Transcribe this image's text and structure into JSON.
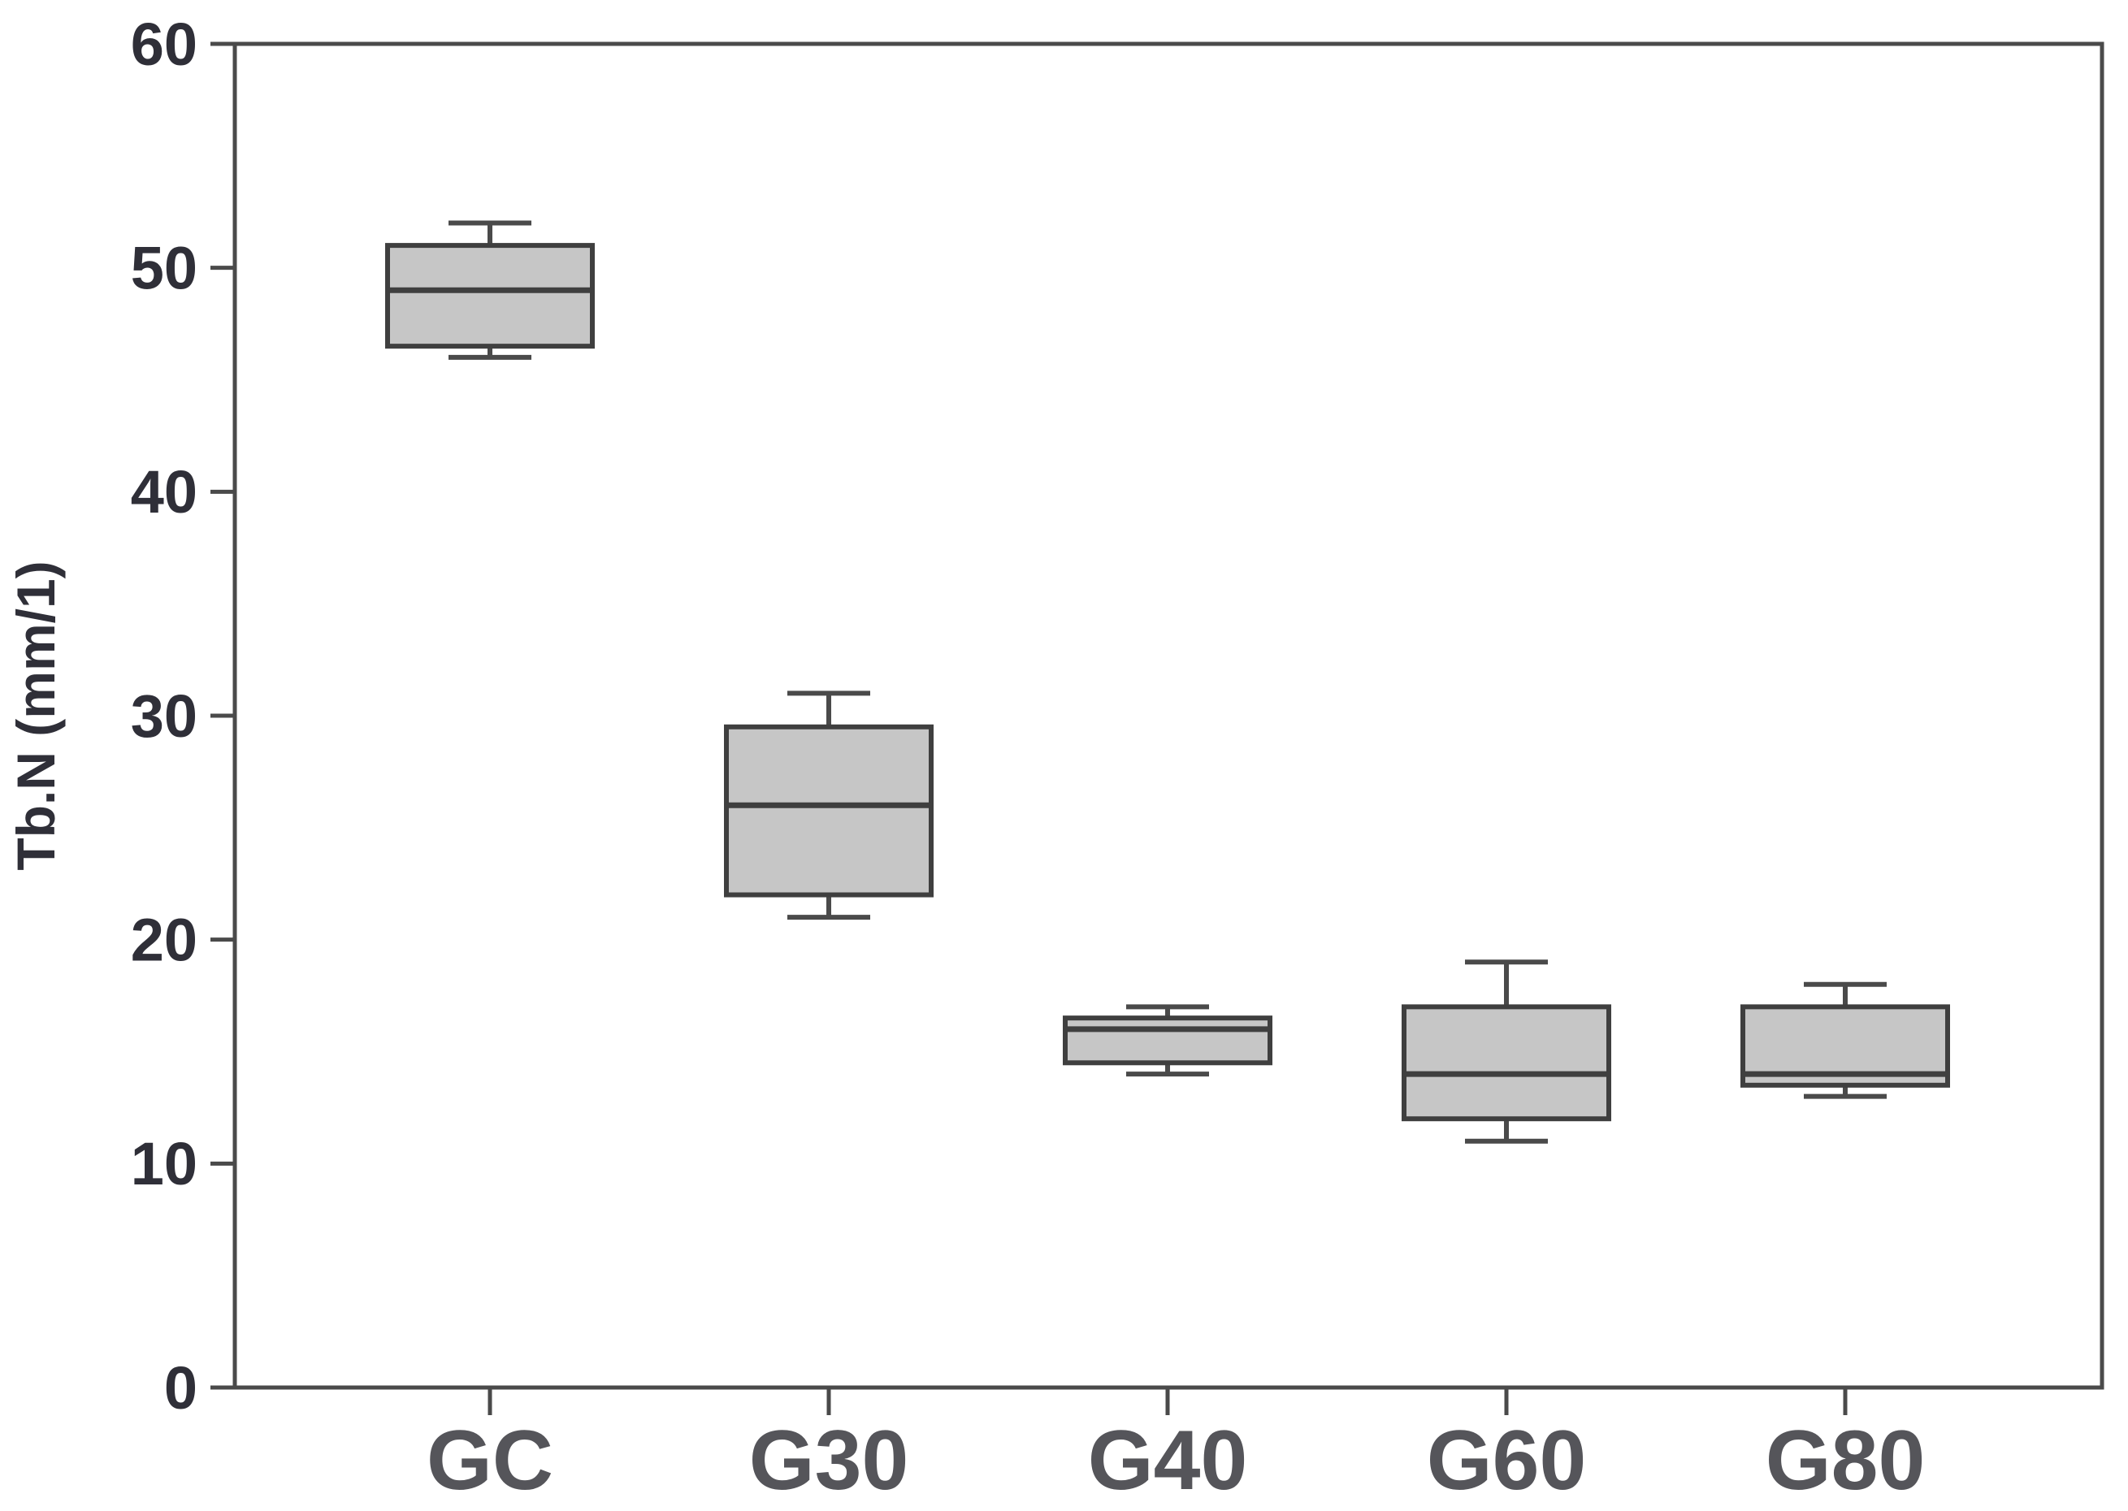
{
  "chart_data": {
    "type": "boxplot",
    "title": "",
    "xlabel": "",
    "ylabel": "Tb.N (mm/1)",
    "ylim": [
      0,
      60
    ],
    "yticks": [
      0,
      10,
      20,
      30,
      40,
      50,
      60
    ],
    "categories": [
      "GC",
      "G30",
      "G40",
      "G60",
      "G80"
    ],
    "series": [
      {
        "name": "GC",
        "whisker_low": 46,
        "q1": 46.5,
        "median": 49,
        "q3": 51,
        "whisker_high": 52
      },
      {
        "name": "G30",
        "whisker_low": 21,
        "q1": 22,
        "median": 26,
        "q3": 29.5,
        "whisker_high": 31
      },
      {
        "name": "G40",
        "whisker_low": 14,
        "q1": 14.5,
        "median": 16,
        "q3": 16.5,
        "whisker_high": 17
      },
      {
        "name": "G60",
        "whisker_low": 11,
        "q1": 12,
        "median": 14,
        "q3": 17,
        "whisker_high": 19
      },
      {
        "name": "G80",
        "whisker_low": 13,
        "q1": 13.5,
        "median": 14,
        "q3": 17,
        "whisker_high": 18
      }
    ],
    "grid": false,
    "legend": "none",
    "colors": {
      "box_fill": "#c6c6c6",
      "box_stroke": "#3f3f3f",
      "whisker": "#4a4a4a",
      "axis": "#4a4a4a",
      "tick_label": "#2f2f38",
      "category_label": "#55555a",
      "background": "#ffffff"
    }
  }
}
